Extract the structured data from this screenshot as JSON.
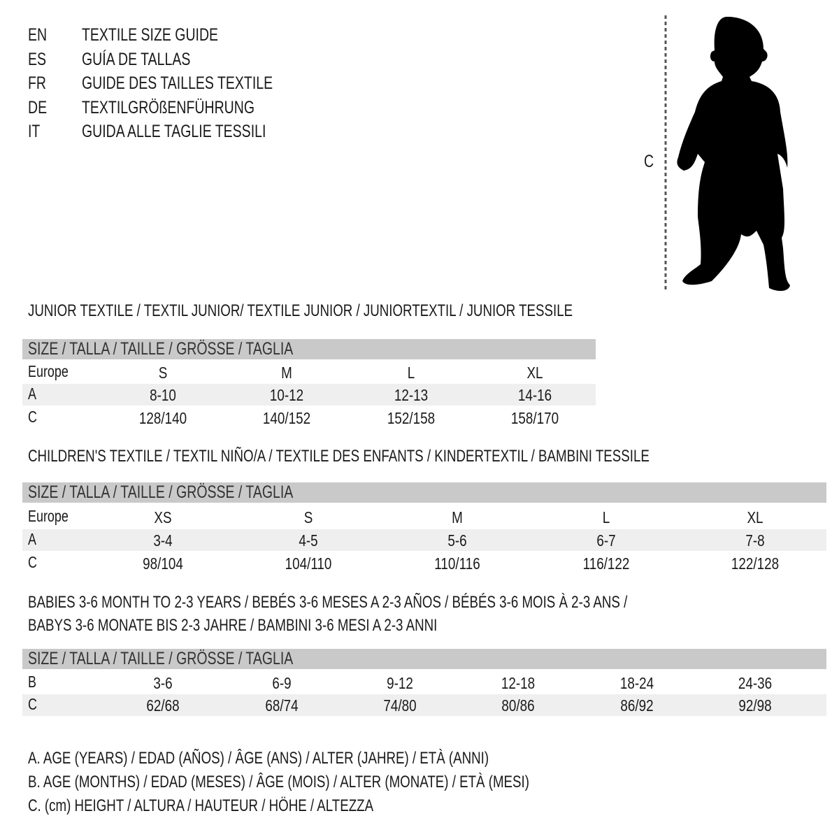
{
  "title_block": [
    {
      "lang": "EN",
      "text": "TEXTILE SIZE GUIDE"
    },
    {
      "lang": "ES",
      "text": "GUÍA DE TALLAS"
    },
    {
      "lang": "FR",
      "text": "GUIDE DES TAILLES TEXTILE"
    },
    {
      "lang": "DE",
      "text": "TEXTILGRÖßENFÜHRUNG"
    },
    {
      "lang": "IT",
      "text": "GUIDA ALLE TAGLIE TESSILI"
    }
  ],
  "figure": {
    "measure_label": "C",
    "icon": "child-silhouette"
  },
  "colors": {
    "header_bar": "#c9c9c9",
    "alt_row": "#efefef",
    "text": "#1a1a1a"
  },
  "sections": [
    {
      "title": [
        "JUNIOR TEXTILE / TEXTIL JUNIOR/ TEXTILE JUNIOR / JUNIORTEXTIL / JUNIOR TESSILE"
      ],
      "header": "SIZE / TALLA / TAILLE / GRÖSSE / TAGLIA",
      "rows": [
        {
          "label": "Europe",
          "values": [
            "S",
            "M",
            "L",
            "XL"
          ]
        },
        {
          "label": "A",
          "values": [
            "8-10",
            "10-12",
            "12-13",
            "14-16"
          ]
        },
        {
          "label": "C",
          "values": [
            "128/140",
            "140/152",
            "152/158",
            "158/170"
          ]
        }
      ]
    },
    {
      "title": [
        "CHILDREN'S TEXTILE / TEXTIL NIÑO/A / TEXTILE DES ENFANTS / KINDERTEXTIL / BAMBINI TESSILE"
      ],
      "header": "SIZE / TALLA / TAILLE / GRÖSSE / TAGLIA",
      "rows": [
        {
          "label": "Europe",
          "values": [
            "XS",
            "S",
            "M",
            "L",
            "XL"
          ]
        },
        {
          "label": "A",
          "values": [
            "3-4",
            "4-5",
            "5-6",
            "6-7",
            "7-8"
          ]
        },
        {
          "label": "C",
          "values": [
            "98/104",
            "104/110",
            "110/116",
            "116/122",
            "122/128"
          ]
        }
      ]
    },
    {
      "title": [
        "BABIES 3-6 MONTH TO 2-3 YEARS / BEBÉS 3-6 MESES A 2-3 AÑOS / BÉBÉS 3-6 MOIS À 2-3 ANS /",
        "BABYS 3-6 MONATE BIS 2-3 JAHRE / BAMBINI 3-6 MESI A 2-3 ANNI"
      ],
      "header": "SIZE / TALLA / TAILLE / GRÖSSE / TAGLIA",
      "rows": [
        {
          "label": "B",
          "values": [
            "3-6",
            "6-9",
            "9-12",
            "12-18",
            "18-24",
            "24-36"
          ]
        },
        {
          "label": "C",
          "values": [
            "62/68",
            "68/74",
            "74/80",
            "80/86",
            "86/92",
            "92/98"
          ]
        }
      ]
    }
  ],
  "legend": [
    "A. AGE (YEARS) / EDAD (AÑOS) / ÂGE (ANS) / ALTER (JAHRE) / ETÀ (ANNI)",
    "B. AGE (MONTHS) / EDAD (MESES) / ÂGE (MOIS) / ALTER (MONATE) / ETÀ (MESI)",
    "C. (cm) HEIGHT / ALTURA / HAUTEUR / HÖHE / ALTEZZA"
  ]
}
